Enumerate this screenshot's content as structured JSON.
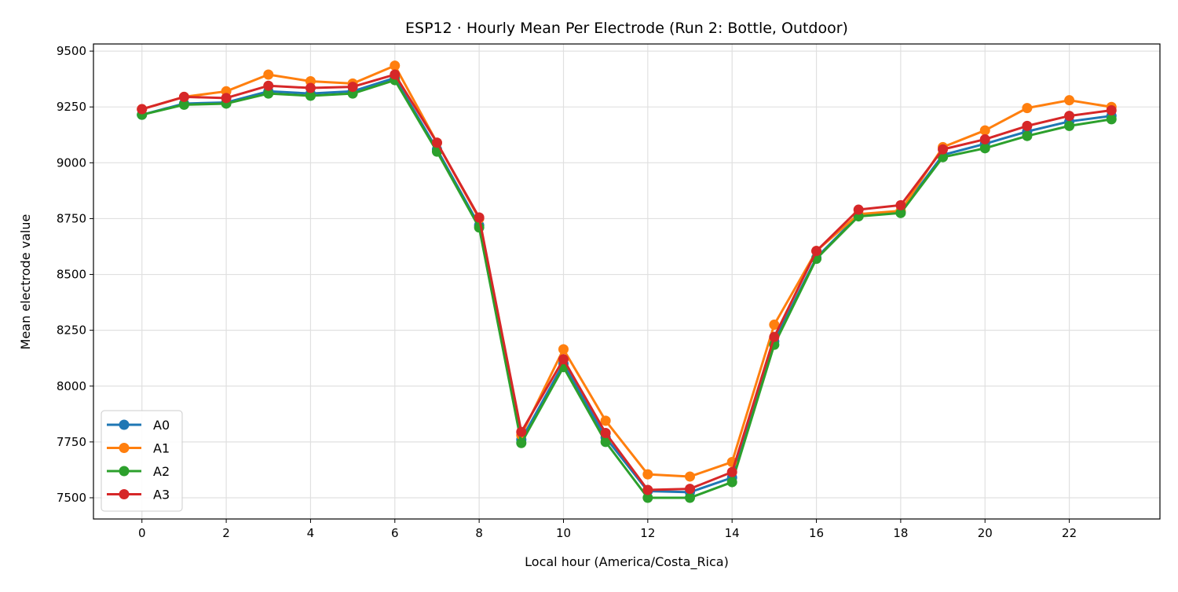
{
  "chart_data": {
    "type": "line",
    "title": "ESP12 · Hourly Mean Per Electrode (Run 2: Bottle, Outdoor)",
    "xlabel": "Local hour (America/Costa_Rica)",
    "ylabel": "Mean electrode value",
    "xlim": [
      -1.15,
      24.15
    ],
    "ylim": [
      7405,
      9532
    ],
    "xticks": [
      0,
      2,
      4,
      6,
      8,
      10,
      12,
      14,
      16,
      18,
      20,
      22
    ],
    "yticks": [
      7500,
      7750,
      8000,
      8250,
      8500,
      8750,
      9000,
      9250,
      9500
    ],
    "grid": true,
    "legend_position": "lower-left",
    "x": [
      0,
      1,
      2,
      3,
      4,
      5,
      6,
      7,
      8,
      9,
      10,
      11,
      12,
      13,
      14,
      15,
      16,
      17,
      18,
      19,
      20,
      21,
      22,
      23
    ],
    "series": [
      {
        "name": "A0",
        "color": "#1f77b4",
        "values": [
          9215,
          9265,
          9270,
          9320,
          9310,
          9320,
          9380,
          9060,
          8720,
          7760,
          8100,
          7770,
          7530,
          7525,
          7590,
          8200,
          8575,
          8765,
          8780,
          9035,
          9085,
          9140,
          9185,
          9210
        ]
      },
      {
        "name": "A1",
        "color": "#ff7f0e",
        "values": [
          9240,
          9295,
          9320,
          9395,
          9365,
          9355,
          9435,
          9090,
          8750,
          7780,
          8165,
          7845,
          7605,
          7595,
          7660,
          8275,
          8605,
          8770,
          8785,
          9070,
          9145,
          9245,
          9280,
          9250
        ]
      },
      {
        "name": "A2",
        "color": "#2ca02c",
        "values": [
          9215,
          9260,
          9265,
          9310,
          9300,
          9310,
          9370,
          9050,
          8710,
          7745,
          8085,
          7750,
          7500,
          7500,
          7570,
          8185,
          8570,
          8760,
          8775,
          9025,
          9065,
          9120,
          9165,
          9195
        ]
      },
      {
        "name": "A3",
        "color": "#d62728",
        "values": [
          9240,
          9295,
          9290,
          9345,
          9335,
          9340,
          9395,
          9090,
          8755,
          7795,
          8120,
          7790,
          7535,
          7540,
          7615,
          8220,
          8605,
          8790,
          8810,
          9060,
          9105,
          9165,
          9210,
          9235
        ]
      }
    ]
  }
}
